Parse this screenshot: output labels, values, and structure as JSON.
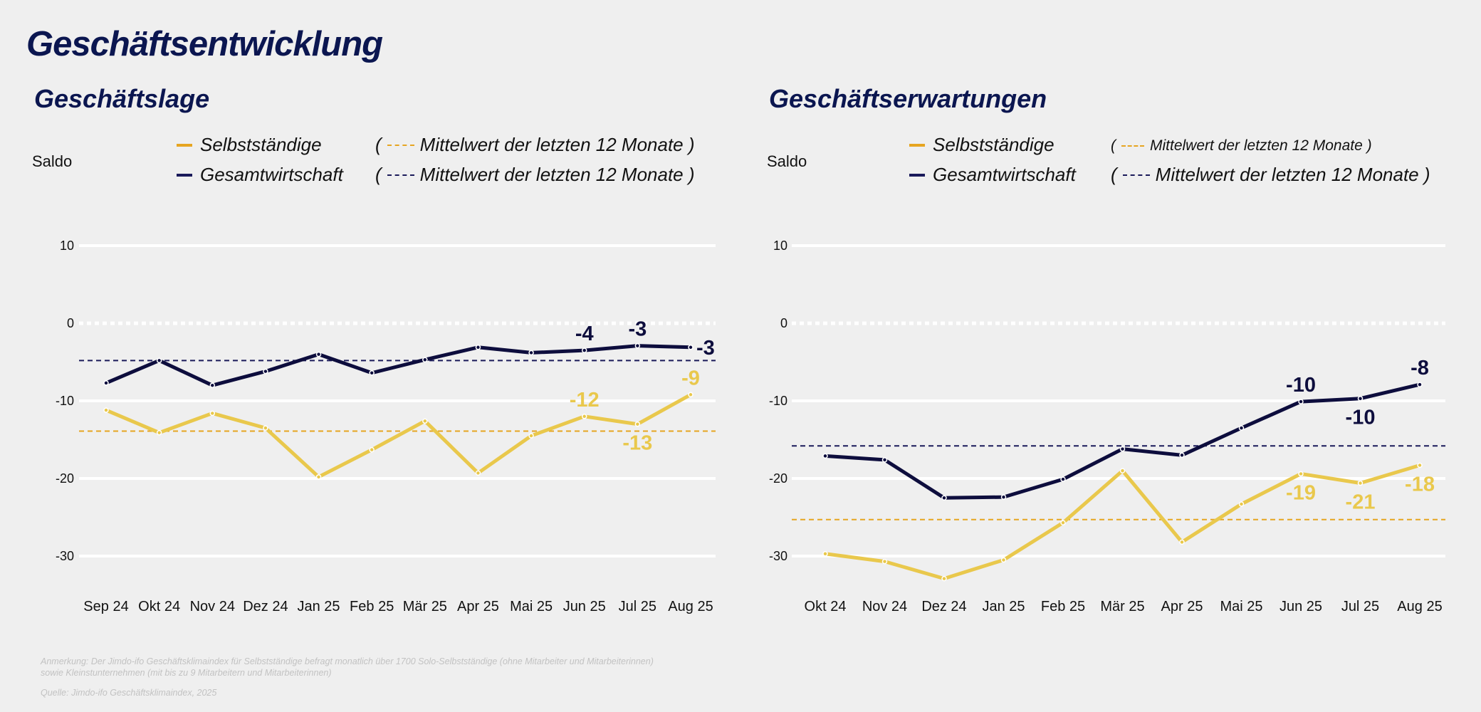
{
  "title": "Geschäftsentwicklung",
  "colors": {
    "navy": "#0d0d3d",
    "yellow": "#e9c84c",
    "yellow_mean": "#e6a521",
    "navy_mean": "#1a1a5a",
    "title": "#0b1650"
  },
  "footnote": {
    "line1": "Anmerkung: Der Jimdo-ifo Geschäftsklimaindex für Selbstständige befragt monatlich über 1700 Solo-Selbstständige (ohne Mitarbeiter und Mitarbeiterinnen)",
    "line2": "sowie Kleinstunternehmen (mit bis zu 9 Mitarbeitern und Mitarbeiterinnen)",
    "source": "Quelle: Jimdo-ifo Geschäftsklimaindex, 2025"
  },
  "chart_data": [
    {
      "type": "line",
      "title": "Geschäftslage",
      "ylabel": "Saldo",
      "ylim": [
        -30,
        10
      ],
      "yticks": [
        "10",
        "0",
        "-10",
        "-20",
        "-30"
      ],
      "ytick_values": [
        10,
        0,
        -10,
        -20,
        -30
      ],
      "grid": true,
      "legend": {
        "placement": "top",
        "series1": "Selbstständige",
        "series2": "Gesamtwirtschaft",
        "mean_label": "Mittelwert der letzten 12 Monate",
        "open": "(",
        "close": ")"
      },
      "categories": [
        "Sep 24",
        "Okt 24",
        "Nov 24",
        "Dez 24",
        "Jan 25",
        "Feb 25",
        "Mär 25",
        "Apr 25",
        "Mai 25",
        "Jun 25",
        "Jul 25",
        "Aug 25"
      ],
      "series": [
        {
          "name": "Selbstständige",
          "color": "#e9c84c",
          "mean": -13.9,
          "values": [
            -11.2,
            -14.1,
            -11.6,
            -13.5,
            -19.8,
            -16.3,
            -12.6,
            -19.3,
            -14.5,
            -12.0,
            -13.0,
            -9.2
          ],
          "labels": [
            {
              "index": 9,
              "text": "-12",
              "position": "above"
            },
            {
              "index": 10,
              "text": "-13",
              "position": "below"
            },
            {
              "index": 11,
              "text": "-9",
              "position": "above"
            }
          ]
        },
        {
          "name": "Gesamtwirtschaft",
          "color": "#0d0d3d",
          "mean": -4.8,
          "values": [
            -7.7,
            -4.8,
            -8.0,
            -6.2,
            -4.0,
            -6.4,
            -4.7,
            -3.1,
            -3.8,
            -3.5,
            -2.9,
            -3.1
          ],
          "labels": [
            {
              "index": 9,
              "text": "-4",
              "position": "above"
            },
            {
              "index": 10,
              "text": "-3",
              "position": "above"
            },
            {
              "index": 11,
              "text": "-3",
              "position": "right"
            }
          ]
        }
      ]
    },
    {
      "type": "line",
      "title": "Geschäftserwartungen",
      "ylabel": "Saldo",
      "ylim": [
        -30,
        10
      ],
      "yticks": [
        "10",
        "0",
        "-10",
        "-20",
        "-30"
      ],
      "ytick_values": [
        10,
        0,
        -10,
        -20,
        -30
      ],
      "grid": true,
      "legend": {
        "placement": "top",
        "series1": "Selbstständige",
        "series2": "Gesamtwirtschaft",
        "mean_label": "Mittelwert der letzten 12 Monate",
        "open": "(",
        "close": ")"
      },
      "categories": [
        "Okt 24",
        "Nov 24",
        "Dez 24",
        "Jan 25",
        "Feb 25",
        "Mär 25",
        "Apr 25",
        "Mai 25",
        "Jun 25",
        "Jul 25",
        "Aug 25"
      ],
      "series": [
        {
          "name": "Selbstständige",
          "color": "#e9c84c",
          "mean": -25.3,
          "values": [
            -29.7,
            -30.7,
            -32.9,
            -30.5,
            -25.7,
            -19.0,
            -28.2,
            -23.3,
            -19.4,
            -20.6,
            -18.3
          ],
          "labels": [
            {
              "index": 8,
              "text": "-19",
              "position": "below"
            },
            {
              "index": 9,
              "text": "-21",
              "position": "below"
            },
            {
              "index": 10,
              "text": "-18",
              "position": "below"
            }
          ]
        },
        {
          "name": "Gesamtwirtschaft",
          "color": "#0d0d3d",
          "mean": -15.8,
          "values": [
            -17.1,
            -17.6,
            -22.5,
            -22.4,
            -20.1,
            -16.2,
            -17.0,
            -13.5,
            -10.1,
            -9.7,
            -7.9
          ],
          "labels": [
            {
              "index": 8,
              "text": "-10",
              "position": "above"
            },
            {
              "index": 9,
              "text": "-10",
              "position": "below"
            },
            {
              "index": 10,
              "text": "-8",
              "position": "above"
            }
          ]
        }
      ]
    }
  ]
}
